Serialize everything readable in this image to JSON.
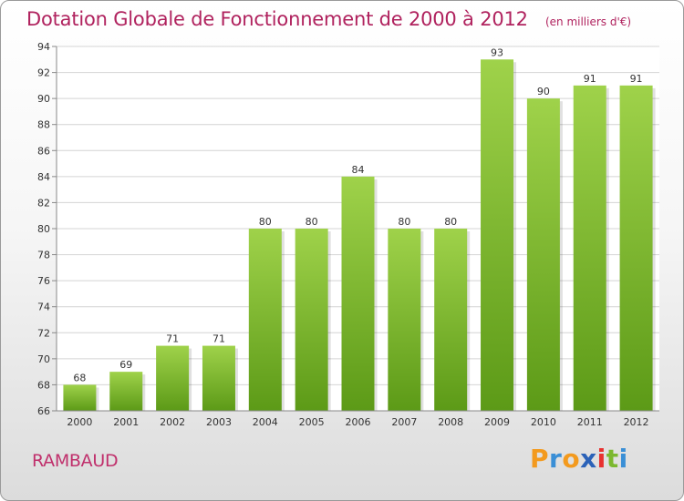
{
  "brand": {
    "letters": [
      "P",
      "r",
      "o",
      "x",
      "i",
      "t",
      "i"
    ],
    "colors": [
      "#f39a1e",
      "#3a8fd6",
      "#f39a1e",
      "#2b62b8",
      "#e8312f",
      "#7cb82f",
      "#3a8fd6"
    ]
  },
  "place_name": "RAMBAUD",
  "colors": {
    "title": "#b0225e",
    "bar_light": "#9fd24a",
    "bar_dark": "#5c9a17",
    "grid": "#d4d4d4"
  },
  "chart_data": {
    "type": "bar",
    "title": "Dotation Globale de Fonctionnement de 2000 à 2012",
    "unit_label": "(en milliers d'€)",
    "categories": [
      "2000",
      "2001",
      "2002",
      "2003",
      "2004",
      "2005",
      "2006",
      "2007",
      "2008",
      "2009",
      "2010",
      "2011",
      "2012"
    ],
    "values": [
      68,
      69,
      71,
      71,
      80,
      80,
      84,
      80,
      80,
      93,
      90,
      91,
      91
    ],
    "ylim": [
      66,
      94
    ],
    "yticks": [
      66,
      68,
      70,
      72,
      74,
      76,
      78,
      80,
      82,
      84,
      86,
      88,
      90,
      92,
      94
    ],
    "grid": true,
    "legend": "none"
  }
}
